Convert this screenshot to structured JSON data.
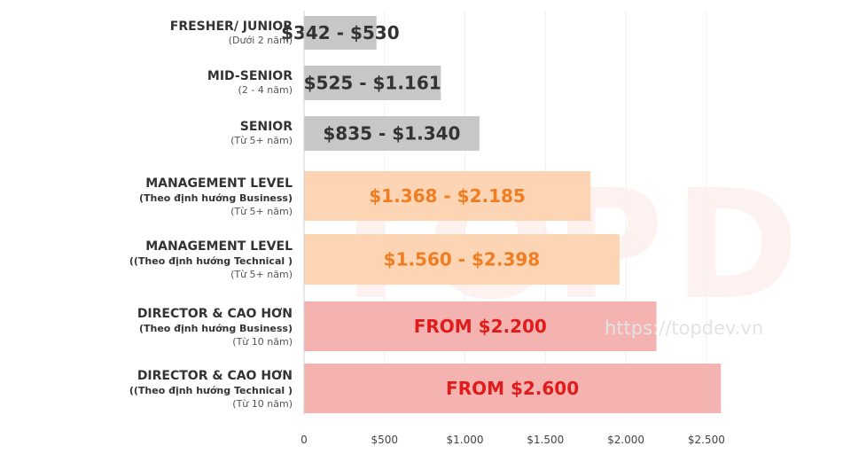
{
  "watermark": {
    "letters": [
      "T",
      "O",
      "P",
      "D"
    ],
    "url": "https://topdev.vn"
  },
  "chart_data": {
    "type": "bar",
    "orientation": "horizontal",
    "title": "",
    "xlabel": "",
    "ylabel": "",
    "xlim": [
      0,
      2600
    ],
    "ticks": [
      0,
      500,
      1000,
      1500,
      2000,
      2500
    ],
    "tick_labels": [
      "0",
      "$500",
      "$1.000",
      "$1.500",
      "$2.000",
      "$2.500"
    ],
    "colors": {
      "gray_bar": "#c7c7c7",
      "gray_text": "#333333",
      "peach_bar": "#fdd5b4",
      "peach_text": "#f07d22",
      "pink_bar": "#f4b3b0",
      "pink_text": "#e01b1b"
    },
    "categories": [
      {
        "title": "FRESHER/ JUNIOR",
        "subtitle": "",
        "note": "(Dưới 2 năm)",
        "value": 450,
        "value_label": "$342 - $530",
        "range": [
          342,
          530
        ],
        "color": "gray"
      },
      {
        "title": "MID-SENIOR",
        "subtitle": "",
        "note": "(2 - 4 năm)",
        "value": 850,
        "value_label": "$525 - $1.161",
        "range": [
          525,
          1161
        ],
        "color": "gray"
      },
      {
        "title": "SENIOR",
        "subtitle": "",
        "note": "(Từ 5+ năm)",
        "value": 1090,
        "value_label": "$835 - $1.340",
        "range": [
          835,
          1340
        ],
        "color": "gray"
      },
      {
        "title": "MANAGEMENT LEVEL",
        "subtitle": "(Theo định hướng Business)",
        "note": "(Từ 5+ năm)",
        "value": 1780,
        "value_label": "$1.368 - $2.185",
        "range": [
          1368,
          2185
        ],
        "color": "peach"
      },
      {
        "title": "MANAGEMENT LEVEL",
        "subtitle": "((Theo định hướng Technical )",
        "note": "(Từ 5+ năm)",
        "value": 1960,
        "value_label": "$1.560 - $2.398",
        "range": [
          1560,
          2398
        ],
        "color": "peach"
      },
      {
        "title": "DIRECTOR & CAO HƠN",
        "subtitle": "(Theo định hướng Business)",
        "note": "(Từ 10 năm)",
        "value": 2190,
        "value_label": "FROM $2.200",
        "range": [
          2200,
          null
        ],
        "color": "pink"
      },
      {
        "title": "DIRECTOR & CAO HƠN",
        "subtitle": "((Theo định hướng Technical )",
        "note": "(Từ 10 năm)",
        "value": 2590,
        "value_label": "FROM $2.600",
        "range": [
          2600,
          null
        ],
        "color": "pink"
      }
    ]
  }
}
